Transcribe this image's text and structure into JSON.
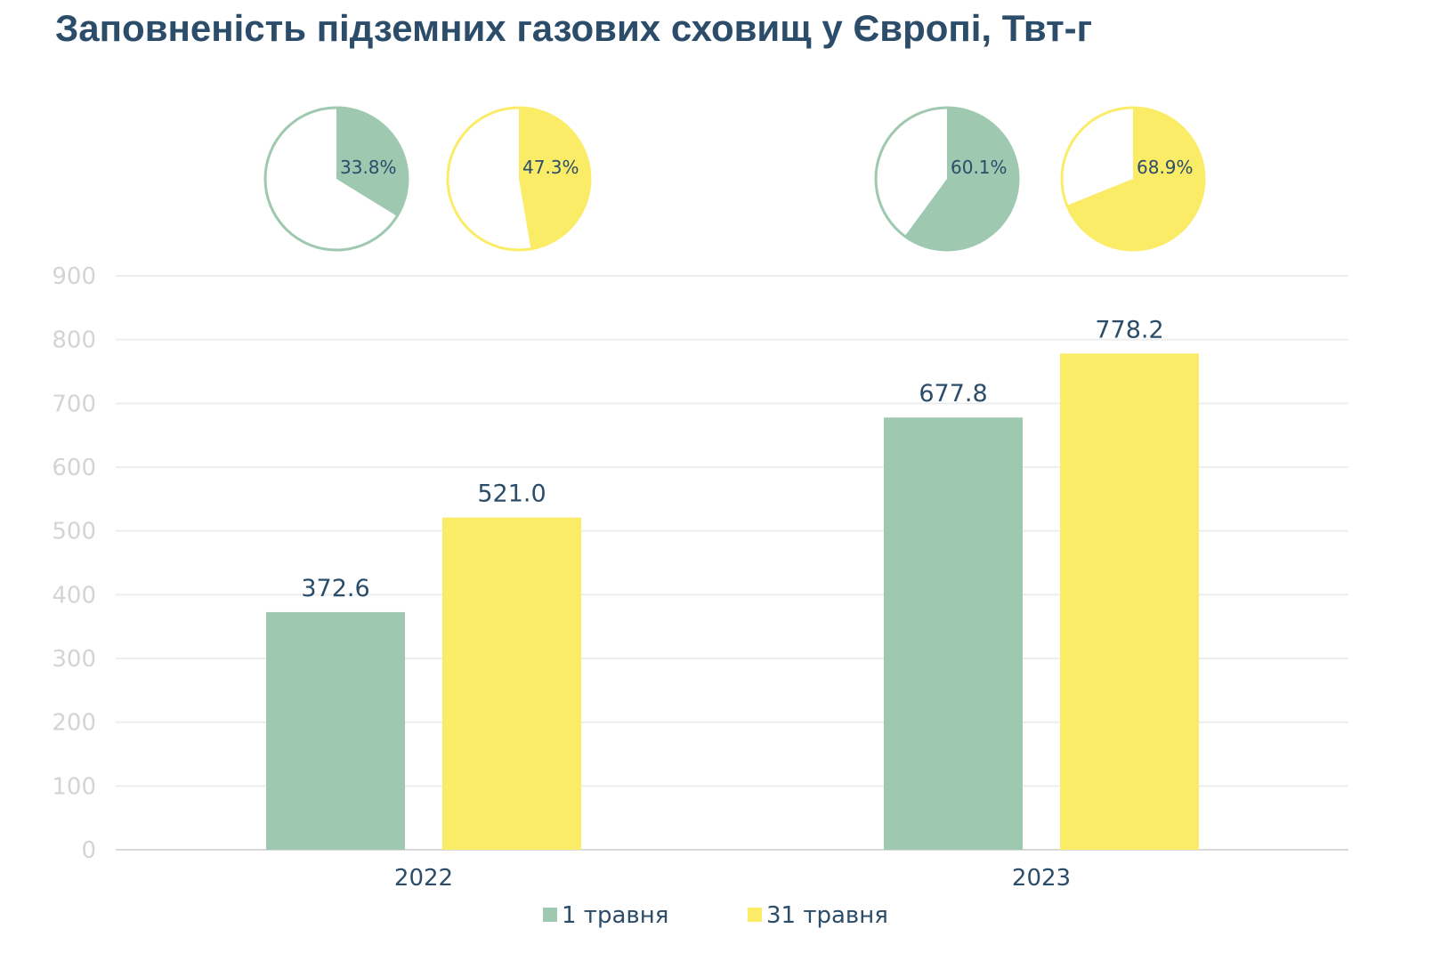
{
  "chart_data": {
    "type": "bar",
    "title": "Заповненість підземних газових сховищ у Європі, Твт-г",
    "xlabel": "",
    "ylabel": "",
    "categories": [
      "2022",
      "2023"
    ],
    "series": [
      {
        "name": "1 травня",
        "color": "#9ec8b0",
        "values": [
          372.6,
          677.8
        ],
        "labels": [
          "372.6",
          "677.8"
        ]
      },
      {
        "name": "31 травня",
        "color": "#fbec67",
        "values": [
          521.0,
          778.2
        ],
        "labels": [
          "521.0",
          "778.2"
        ]
      }
    ],
    "ylim": [
      0,
      900
    ],
    "yticks": [
      0,
      100,
      200,
      300,
      400,
      500,
      600,
      700,
      800,
      900
    ],
    "grid": true,
    "legend": "bottom",
    "pies": [
      {
        "category": "2022",
        "series": "1 травня",
        "value": 33.8,
        "label": "33.8%"
      },
      {
        "category": "2022",
        "series": "31 травня",
        "value": 47.3,
        "label": "47.3%"
      },
      {
        "category": "2023",
        "series": "1 травня",
        "value": 60.1,
        "label": "60.1%"
      },
      {
        "category": "2023",
        "series": "31 травня",
        "value": 68.9,
        "label": "68.9%"
      }
    ]
  }
}
